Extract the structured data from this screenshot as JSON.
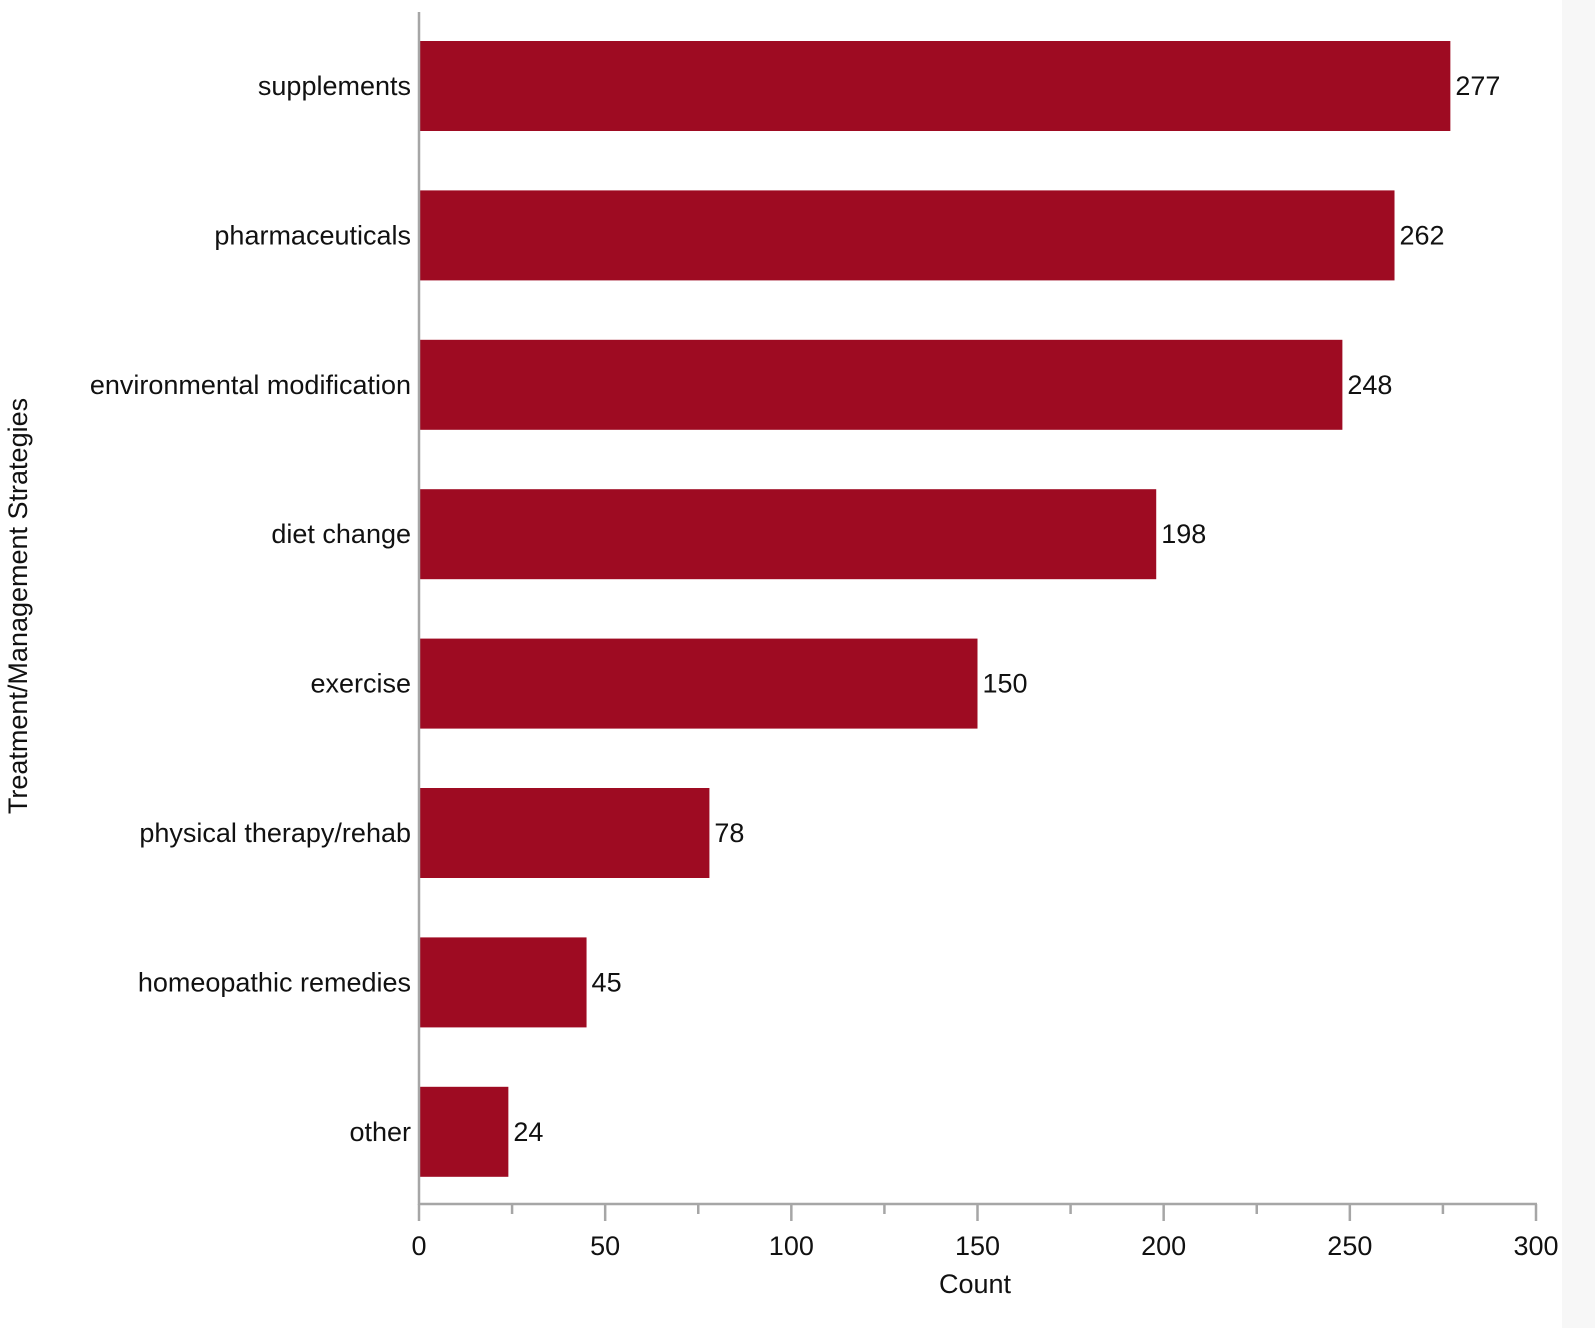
{
  "chart_data": {
    "type": "bar",
    "orientation": "horizontal",
    "title": "",
    "xlabel": "Count",
    "ylabel": "Treatment/Management Strategies",
    "categories": [
      "supplements",
      "pharmaceuticals",
      "environmental modification",
      "diet change",
      "exercise",
      "physical therapy/rehab",
      "homeopathic remedies",
      "other"
    ],
    "values": [
      277,
      262,
      248,
      198,
      150,
      78,
      45,
      24
    ],
    "data_labels": [
      "277",
      "262",
      "248",
      "198",
      "150",
      "78",
      "45",
      "24"
    ],
    "xlim": [
      0,
      300
    ],
    "x_ticks": [
      0,
      50,
      100,
      150,
      200,
      250,
      300
    ],
    "x_tick_labels": [
      "0",
      "50",
      "100",
      "150",
      "200",
      "250",
      "300"
    ],
    "x_minor_ticks": [
      25,
      75,
      125,
      175,
      225,
      275
    ],
    "grid": false,
    "legend": null,
    "bar_color": "#9e0b22",
    "axis_color": "#a6a6a6"
  }
}
